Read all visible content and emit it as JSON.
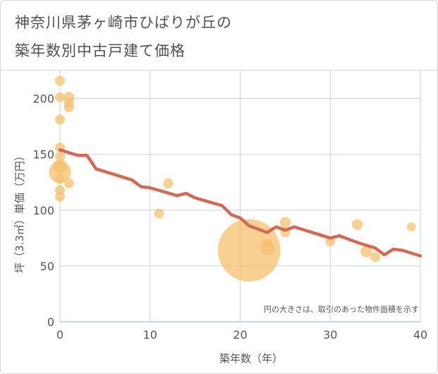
{
  "title_line1": "神奈川県茅ヶ崎市ひばりが丘の",
  "title_line2": "築年数別中古戸建て価格",
  "chart_data": {
    "type": "scatter",
    "xlabel": "築年数（年）",
    "ylabel": "坪（3.3㎡）単価（万円）",
    "xlim": [
      0,
      40
    ],
    "ylim": [
      0,
      225
    ],
    "xticks": [
      "0",
      "10",
      "20",
      "30",
      "40"
    ],
    "yticks": [
      "0",
      "50",
      "100",
      "150",
      "200"
    ],
    "grid": true,
    "note": "円の大きさは、取引のあった物件面積を示す",
    "colors": {
      "bubble": "#f5c06e",
      "line": "#d26b56",
      "grid": "#c8d3df"
    },
    "bubbles": [
      {
        "x": 0,
        "y": 216,
        "size": 1
      },
      {
        "x": 0,
        "y": 201,
        "size": 1
      },
      {
        "x": 0,
        "y": 181,
        "size": 1
      },
      {
        "x": 0,
        "y": 156,
        "size": 1
      },
      {
        "x": 0,
        "y": 148,
        "size": 1
      },
      {
        "x": 0,
        "y": 139,
        "size": 2
      },
      {
        "x": 0,
        "y": 134,
        "size": 5
      },
      {
        "x": 0,
        "y": 128,
        "size": 1
      },
      {
        "x": 0,
        "y": 118,
        "size": 1
      },
      {
        "x": 0,
        "y": 112,
        "size": 1
      },
      {
        "x": 1,
        "y": 201,
        "size": 1.2
      },
      {
        "x": 1,
        "y": 196,
        "size": 1
      },
      {
        "x": 1,
        "y": 192,
        "size": 1
      },
      {
        "x": 1,
        "y": 124,
        "size": 1
      },
      {
        "x": 11,
        "y": 97,
        "size": 1
      },
      {
        "x": 12,
        "y": 124,
        "size": 1
      },
      {
        "x": 21,
        "y": 64,
        "size": 40
      },
      {
        "x": 23,
        "y": 70,
        "size": 1.2
      },
      {
        "x": 23,
        "y": 66,
        "size": 2
      },
      {
        "x": 25,
        "y": 89,
        "size": 1.2
      },
      {
        "x": 25,
        "y": 80,
        "size": 1
      },
      {
        "x": 30,
        "y": 72,
        "size": 1
      },
      {
        "x": 33,
        "y": 87,
        "size": 1.2
      },
      {
        "x": 34,
        "y": 63,
        "size": 1.4
      },
      {
        "x": 35,
        "y": 58,
        "size": 1
      },
      {
        "x": 39,
        "y": 85,
        "size": 0.8
      }
    ],
    "trend": {
      "x": [
        0,
        2,
        3,
        4,
        8,
        9,
        10,
        13,
        14,
        15,
        18,
        19,
        20,
        21,
        23,
        24,
        25,
        26,
        28,
        30,
        31,
        33,
        35,
        36,
        37,
        38,
        40
      ],
      "y": [
        154,
        149,
        149,
        137,
        127,
        121,
        120,
        113,
        115,
        111,
        104,
        96,
        93,
        86,
        80,
        85,
        82,
        85,
        80,
        75,
        77,
        71,
        66,
        60,
        65,
        64,
        59
      ]
    }
  }
}
